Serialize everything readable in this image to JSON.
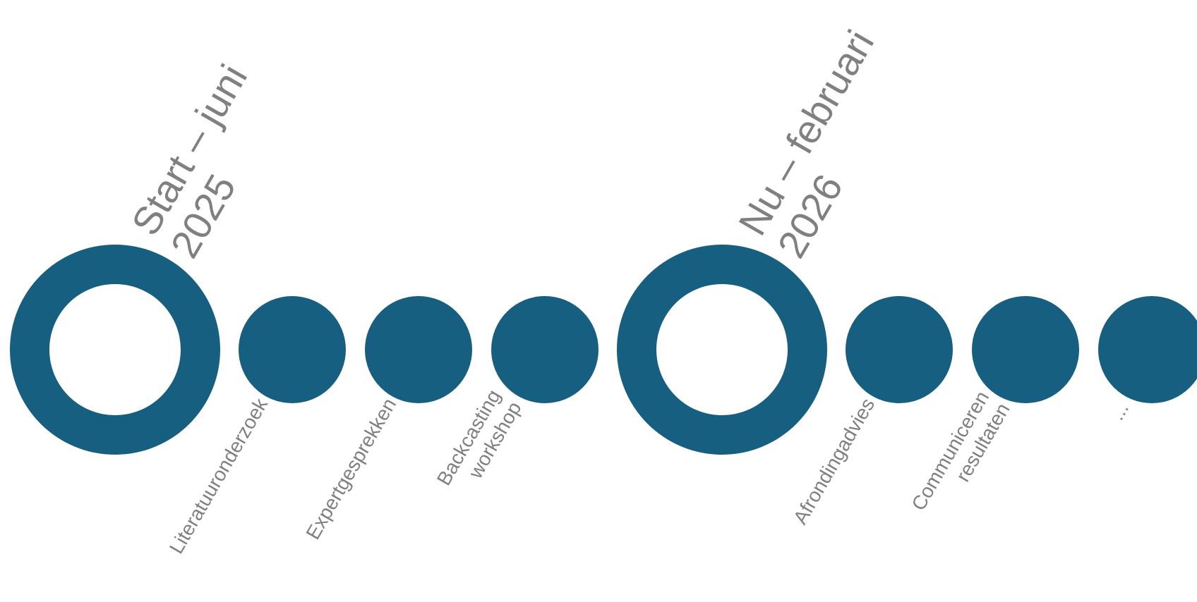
{
  "colors": {
    "accent": "#175f80",
    "text": "#808080",
    "background": "#ffffff"
  },
  "timeline": {
    "nodes": [
      {
        "kind": "milestone",
        "label_lines": [
          "Start – juni",
          "2025"
        ]
      },
      {
        "kind": "step",
        "label_lines": [
          "Literatuuronderzoek"
        ]
      },
      {
        "kind": "step",
        "label_lines": [
          "Expertgesprekken"
        ]
      },
      {
        "kind": "step",
        "label_lines": [
          "Backcasting",
          "workshop"
        ]
      },
      {
        "kind": "milestone",
        "label_lines": [
          "Nu – februari",
          "2026"
        ]
      },
      {
        "kind": "step",
        "label_lines": [
          "Afrondingadvies"
        ]
      },
      {
        "kind": "step",
        "label_lines": [
          "Communiceren",
          "resultaten"
        ]
      },
      {
        "kind": "step",
        "label_lines": [
          "..."
        ]
      }
    ]
  }
}
